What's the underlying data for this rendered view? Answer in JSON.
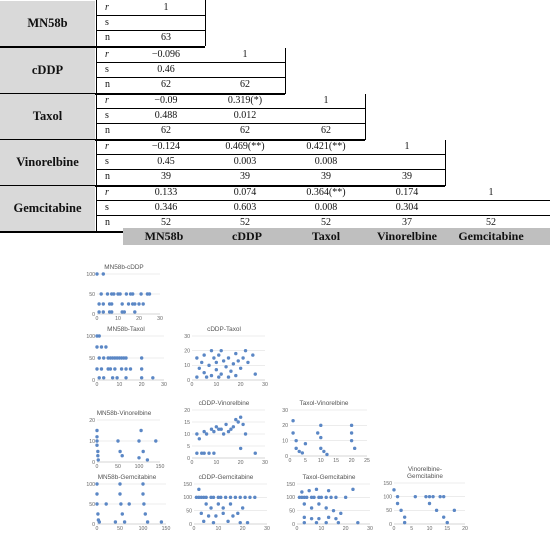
{
  "table": {
    "row_groups": [
      {
        "label": "MN58b",
        "rows": [
          {
            "sym": "r",
            "vals": [
              "1"
            ]
          },
          {
            "sym": "s",
            "vals": [
              ""
            ]
          },
          {
            "sym": "n",
            "vals": [
              "63"
            ]
          }
        ]
      },
      {
        "label": "cDDP",
        "rows": [
          {
            "sym": "r",
            "vals": [
              "−0.096",
              "1"
            ]
          },
          {
            "sym": "s",
            "vals": [
              "0.46",
              ""
            ]
          },
          {
            "sym": "n",
            "vals": [
              "62",
              "62"
            ]
          }
        ]
      },
      {
        "label": "Taxol",
        "rows": [
          {
            "sym": "r",
            "vals": [
              "−0.09",
              "0.319(*)",
              "1"
            ]
          },
          {
            "sym": "s",
            "vals": [
              "0.488",
              "0.012",
              ""
            ]
          },
          {
            "sym": "n",
            "vals": [
              "62",
              "62",
              "62"
            ]
          }
        ]
      },
      {
        "label": "Vinorelbine",
        "rows": [
          {
            "sym": "r",
            "vals": [
              "−0.124",
              "0.469(**)",
              "0.421(**)",
              "1"
            ]
          },
          {
            "sym": "s",
            "vals": [
              "0.45",
              "0.003",
              "0.008",
              ""
            ]
          },
          {
            "sym": "n",
            "vals": [
              "39",
              "39",
              "39",
              "39"
            ]
          }
        ]
      },
      {
        "label": "Gemcitabine",
        "rows": [
          {
            "sym": "r",
            "vals": [
              "0.133",
              "0.074",
              "0.364(**)",
              "0.174",
              "1"
            ]
          },
          {
            "sym": "s",
            "vals": [
              "0.346",
              "0.603",
              "0.008",
              "0.304",
              ""
            ]
          },
          {
            "sym": "n",
            "vals": [
              "52",
              "52",
              "52",
              "37",
              "52"
            ]
          }
        ]
      }
    ],
    "column_headers": [
      "MN58b",
      "cDDP",
      "Taxol",
      "Vinorelbine",
      "Gemcitabine"
    ],
    "header_bg": "#bfbfbf",
    "label_bg": "#d9d9d9"
  },
  "chart_data": [
    {
      "type": "scatter",
      "title": "MN58b-cDDP",
      "xlim": [
        0,
        30
      ],
      "ylim": [
        0,
        100
      ],
      "xticks": [
        "0",
        "10",
        "20",
        "30"
      ],
      "yticks": [
        "0",
        "50",
        "100"
      ],
      "points": [
        [
          0,
          100
        ],
        [
          3,
          100
        ],
        [
          2,
          50
        ],
        [
          5,
          50
        ],
        [
          7,
          50
        ],
        [
          8,
          50
        ],
        [
          10,
          50
        ],
        [
          11,
          50
        ],
        [
          14,
          50
        ],
        [
          16,
          50
        ],
        [
          17,
          50
        ],
        [
          21,
          50
        ],
        [
          24,
          50
        ],
        [
          25,
          50
        ],
        [
          1,
          25
        ],
        [
          3,
          25
        ],
        [
          6,
          25
        ],
        [
          7,
          25
        ],
        [
          12,
          25
        ],
        [
          15,
          25
        ],
        [
          17,
          25
        ],
        [
          18,
          25
        ],
        [
          20,
          25
        ],
        [
          22,
          25
        ],
        [
          1,
          5
        ],
        [
          3,
          5
        ],
        [
          6,
          5
        ],
        [
          7,
          5
        ],
        [
          12,
          5
        ],
        [
          13,
          5
        ],
        [
          18,
          5
        ]
      ]
    },
    {
      "type": "scatter",
      "title": "MN58b-Taxol",
      "xlim": [
        0,
        30
      ],
      "ylim": [
        0,
        100
      ],
      "xticks": [
        "0",
        "10",
        "20",
        "30"
      ],
      "yticks": [
        "0",
        "50",
        "100"
      ],
      "points": [
        [
          0,
          100
        ],
        [
          1,
          100
        ],
        [
          0,
          75
        ],
        [
          2,
          75
        ],
        [
          4,
          75
        ],
        [
          1,
          50
        ],
        [
          3,
          50
        ],
        [
          5,
          50
        ],
        [
          6,
          50
        ],
        [
          7,
          50
        ],
        [
          8,
          50
        ],
        [
          9,
          50
        ],
        [
          10,
          50
        ],
        [
          11,
          50
        ],
        [
          12,
          50
        ],
        [
          13,
          50
        ],
        [
          20,
          50
        ],
        [
          0,
          25
        ],
        [
          2,
          25
        ],
        [
          5,
          25
        ],
        [
          6,
          25
        ],
        [
          8,
          25
        ],
        [
          11,
          25
        ],
        [
          13,
          25
        ],
        [
          15,
          25
        ],
        [
          20,
          25
        ],
        [
          1,
          5
        ],
        [
          3,
          5
        ],
        [
          7,
          5
        ],
        [
          9,
          5
        ],
        [
          13,
          5
        ],
        [
          20,
          5
        ],
        [
          25,
          5
        ]
      ]
    },
    {
      "type": "scatter",
      "title": "cDDP-Taxol",
      "xlim": [
        0,
        30
      ],
      "ylim": [
        0,
        30
      ],
      "xticks": [
        "0",
        "10",
        "20",
        "30"
      ],
      "yticks": [
        "0",
        "10",
        "20",
        "30"
      ],
      "points": [
        [
          2,
          15
        ],
        [
          3,
          8
        ],
        [
          4,
          12
        ],
        [
          5,
          17
        ],
        [
          5,
          5
        ],
        [
          7,
          10
        ],
        [
          8,
          20
        ],
        [
          8,
          3
        ],
        [
          9,
          15
        ],
        [
          10,
          7
        ],
        [
          10,
          12
        ],
        [
          11,
          17
        ],
        [
          12,
          4
        ],
        [
          12,
          20
        ],
        [
          13,
          13
        ],
        [
          14,
          9
        ],
        [
          15,
          15
        ],
        [
          16,
          6
        ],
        [
          17,
          11
        ],
        [
          18,
          18
        ],
        [
          18,
          3
        ],
        [
          19,
          13
        ],
        [
          20,
          8
        ],
        [
          21,
          15
        ],
        [
          22,
          20
        ],
        [
          23,
          12
        ],
        [
          25,
          17
        ],
        [
          26,
          4
        ],
        [
          2,
          2
        ],
        [
          6,
          2
        ],
        [
          11,
          2
        ],
        [
          15,
          2
        ]
      ]
    },
    {
      "type": "scatter",
      "title": "MN58b-Vinorelbine",
      "xlim": [
        0,
        150
      ],
      "ylim": [
        0,
        20
      ],
      "xticks": [
        "0",
        "50",
        "100",
        "150"
      ],
      "yticks": [
        "0",
        "10",
        "20"
      ],
      "points": [
        [
          0,
          15
        ],
        [
          0,
          12
        ],
        [
          0,
          10
        ],
        [
          0,
          8
        ],
        [
          2,
          5
        ],
        [
          2,
          3
        ],
        [
          3,
          1
        ],
        [
          50,
          10
        ],
        [
          55,
          5
        ],
        [
          60,
          3
        ],
        [
          100,
          10
        ],
        [
          105,
          15
        ],
        [
          110,
          5
        ],
        [
          100,
          2
        ],
        [
          120,
          1
        ],
        [
          140,
          10
        ]
      ]
    },
    {
      "type": "scatter",
      "title": "cDDP-Vinorelbine",
      "xlim": [
        0,
        30
      ],
      "ylim": [
        0,
        20
      ],
      "xticks": [
        "0",
        "10",
        "20",
        "30"
      ],
      "yticks": [
        "0",
        "5",
        "10",
        "15",
        "20"
      ],
      "points": [
        [
          2,
          2
        ],
        [
          4,
          2
        ],
        [
          5,
          2
        ],
        [
          7,
          2
        ],
        [
          9,
          2
        ],
        [
          2,
          10
        ],
        [
          3,
          8
        ],
        [
          5,
          11
        ],
        [
          6,
          10
        ],
        [
          8,
          12
        ],
        [
          9,
          11
        ],
        [
          10,
          13
        ],
        [
          11,
          12
        ],
        [
          12,
          12
        ],
        [
          13,
          10
        ],
        [
          14,
          14
        ],
        [
          15,
          11
        ],
        [
          16,
          12
        ],
        [
          17,
          13
        ],
        [
          18,
          16
        ],
        [
          19,
          15
        ],
        [
          20,
          17
        ],
        [
          21,
          14
        ],
        [
          20,
          4
        ],
        [
          22,
          10
        ],
        [
          26,
          2
        ]
      ]
    },
    {
      "type": "scatter",
      "title": "Taxol-Vinorelbine",
      "xlim": [
        0,
        25
      ],
      "ylim": [
        0,
        30
      ],
      "xticks": [
        "0",
        "5",
        "10",
        "15",
        "20",
        "25"
      ],
      "yticks": [
        "0",
        "10",
        "20",
        "30"
      ],
      "points": [
        [
          1,
          23
        ],
        [
          1,
          15
        ],
        [
          2,
          10
        ],
        [
          2,
          5
        ],
        [
          3,
          3
        ],
        [
          4,
          2
        ],
        [
          5,
          8
        ],
        [
          9,
          15
        ],
        [
          10,
          20
        ],
        [
          10,
          12
        ],
        [
          10,
          5
        ],
        [
          11,
          3
        ],
        [
          12,
          1
        ],
        [
          20,
          20
        ],
        [
          20,
          15
        ],
        [
          20,
          10
        ],
        [
          21,
          5
        ]
      ]
    },
    {
      "type": "scatter",
      "title": "MN58b-Gemcitabine",
      "xlim": [
        0,
        150
      ],
      "ylim": [
        0,
        100
      ],
      "xticks": [
        "0",
        "50",
        "100",
        "150"
      ],
      "yticks": [
        "0",
        "50",
        "100"
      ],
      "points": [
        [
          0,
          100
        ],
        [
          0,
          75
        ],
        [
          0,
          50
        ],
        [
          2,
          25
        ],
        [
          3,
          10
        ],
        [
          5,
          5
        ],
        [
          20,
          50
        ],
        [
          40,
          5
        ],
        [
          50,
          100
        ],
        [
          50,
          75
        ],
        [
          52,
          50
        ],
        [
          55,
          25
        ],
        [
          60,
          5
        ],
        [
          70,
          50
        ],
        [
          100,
          100
        ],
        [
          100,
          75
        ],
        [
          102,
          50
        ],
        [
          105,
          25
        ],
        [
          110,
          5
        ],
        [
          140,
          5
        ]
      ]
    },
    {
      "type": "scatter",
      "title": "cDDP-Gemcitabine",
      "xlim": [
        0,
        30
      ],
      "ylim": [
        0,
        150
      ],
      "xticks": [
        "0",
        "10",
        "20",
        "30"
      ],
      "yticks": [
        "0",
        "50",
        "100",
        "150"
      ],
      "points": [
        [
          1,
          100
        ],
        [
          2,
          100
        ],
        [
          3,
          100
        ],
        [
          4,
          100
        ],
        [
          5,
          100
        ],
        [
          7,
          100
        ],
        [
          8,
          100
        ],
        [
          10,
          100
        ],
        [
          11,
          100
        ],
        [
          13,
          100
        ],
        [
          15,
          100
        ],
        [
          17,
          100
        ],
        [
          19,
          100
        ],
        [
          21,
          100
        ],
        [
          23,
          100
        ],
        [
          25,
          100
        ],
        [
          2,
          130
        ],
        [
          5,
          75
        ],
        [
          7,
          60
        ],
        [
          10,
          75
        ],
        [
          12,
          60
        ],
        [
          15,
          75
        ],
        [
          18,
          40
        ],
        [
          20,
          60
        ],
        [
          3,
          40
        ],
        [
          6,
          30
        ],
        [
          9,
          30
        ],
        [
          12,
          40
        ],
        [
          16,
          30
        ],
        [
          4,
          10
        ],
        [
          8,
          5
        ],
        [
          14,
          10
        ],
        [
          19,
          5
        ],
        [
          22,
          5
        ]
      ]
    },
    {
      "type": "scatter",
      "title": "Taxol-Gemcitabine",
      "xlim": [
        0,
        30
      ],
      "ylim": [
        0,
        150
      ],
      "xticks": [
        "0",
        "10",
        "20",
        "30"
      ],
      "yticks": [
        "0",
        "50",
        "100",
        "150"
      ],
      "points": [
        [
          1,
          100
        ],
        [
          2,
          100
        ],
        [
          3,
          100
        ],
        [
          4,
          100
        ],
        [
          6,
          100
        ],
        [
          7,
          100
        ],
        [
          9,
          100
        ],
        [
          10,
          100
        ],
        [
          12,
          100
        ],
        [
          14,
          100
        ],
        [
          16,
          100
        ],
        [
          20,
          100
        ],
        [
          2,
          120
        ],
        [
          5,
          125
        ],
        [
          8,
          130
        ],
        [
          13,
          125
        ],
        [
          23,
          130
        ],
        [
          3,
          75
        ],
        [
          6,
          60
        ],
        [
          9,
          75
        ],
        [
          12,
          60
        ],
        [
          15,
          50
        ],
        [
          18,
          40
        ],
        [
          3,
          25
        ],
        [
          6,
          20
        ],
        [
          9,
          20
        ],
        [
          13,
          25
        ],
        [
          16,
          20
        ],
        [
          3,
          5
        ],
        [
          8,
          5
        ],
        [
          12,
          5
        ],
        [
          17,
          5
        ],
        [
          25,
          5
        ]
      ]
    },
    {
      "type": "scatter",
      "title": "Vinorelbine-\nGemcitabine",
      "xlim": [
        0,
        20
      ],
      "ylim": [
        0,
        150
      ],
      "xticks": [
        "0",
        "5",
        "10",
        "15",
        "20"
      ],
      "yticks": [
        "0",
        "50",
        "100",
        "150"
      ],
      "points": [
        [
          0,
          125
        ],
        [
          1,
          100
        ],
        [
          1,
          75
        ],
        [
          2,
          50
        ],
        [
          3,
          25
        ],
        [
          3,
          5
        ],
        [
          6,
          100
        ],
        [
          9,
          100
        ],
        [
          10,
          100
        ],
        [
          11,
          100
        ],
        [
          13,
          100
        ],
        [
          14,
          100
        ],
        [
          10,
          75
        ],
        [
          12,
          50
        ],
        [
          14,
          25
        ],
        [
          15,
          5
        ],
        [
          17,
          50
        ]
      ]
    }
  ],
  "colors": {
    "marker": "#5b87c5",
    "grid": "#d9d9d9",
    "axis_text": "#666666"
  }
}
